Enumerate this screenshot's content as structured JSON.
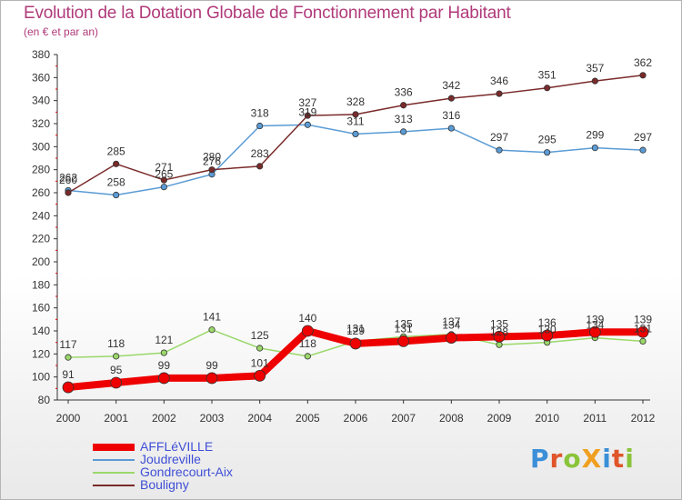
{
  "title": "Evolution de la Dotation Globale de Fonctionnement par Habitant",
  "subtitle": "(en € et par an)",
  "brand": {
    "text": "ProXiti",
    "letter_colors": [
      "#3a8fd8",
      "#e0552a",
      "#8ac43a",
      "#f0a020",
      "#3a8fd8",
      "#e0552a",
      "#8ac43a"
    ]
  },
  "chart_data": {
    "type": "line",
    "x": [
      2000,
      2001,
      2002,
      2003,
      2004,
      2005,
      2006,
      2007,
      2008,
      2009,
      2010,
      2011,
      2012
    ],
    "ylim": [
      80,
      380
    ],
    "yticks": [
      80,
      100,
      120,
      140,
      160,
      180,
      200,
      220,
      240,
      260,
      280,
      300,
      320,
      340,
      360,
      380
    ],
    "grid": false,
    "legend_position": "bottom-left",
    "series": [
      {
        "name": "AFFLéVILLE",
        "color": "#ee0000",
        "values": [
          91,
          95,
          99,
          99,
          101,
          140,
          129,
          131,
          134,
          135,
          136,
          139,
          139
        ]
      },
      {
        "name": "Joudreville",
        "color": "#5a9bd5",
        "values": [
          262,
          258,
          265,
          276,
          318,
          319,
          311,
          313,
          316,
          297,
          295,
          299,
          297
        ]
      },
      {
        "name": "Gondrecourt-Aix",
        "color": "#9ad86a",
        "values": [
          117,
          118,
          121,
          141,
          125,
          118,
          131,
          135,
          137,
          128,
          130,
          134,
          131
        ]
      },
      {
        "name": "Bouligny",
        "color": "#7a2a2a",
        "values": [
          260,
          285,
          271,
          280,
          283,
          327,
          328,
          336,
          342,
          346,
          351,
          357,
          362
        ]
      }
    ]
  }
}
